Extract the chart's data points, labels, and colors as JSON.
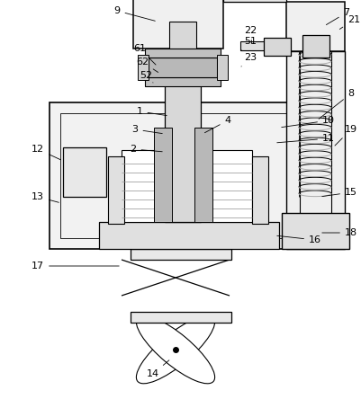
{
  "background_color": "#ffffff",
  "line_color": "#000000",
  "fig_width": 4.02,
  "fig_height": 4.44,
  "dpi": 100
}
